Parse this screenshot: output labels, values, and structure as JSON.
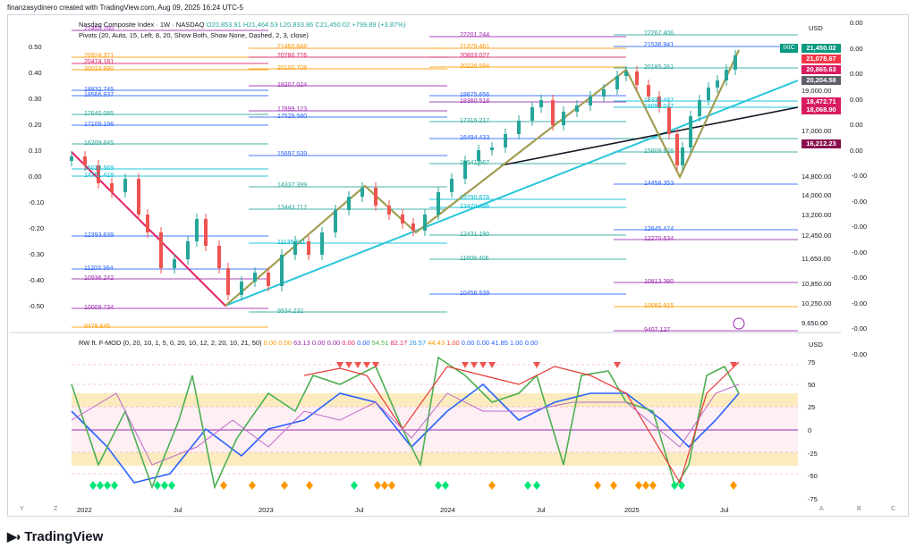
{
  "header": {
    "publisher": "finanzasydinero created with TradingView.com, Aug 09, 2025 16:24 UTC-5"
  },
  "legend": {
    "symbol": "Nasdaq Composite Index · 1W · NASDAQ",
    "open": "O20,853.91",
    "high": "H21,464.53",
    "low": "L20,833.86",
    "close": "C21,450.02",
    "change": "+799.89 (+3.87%)",
    "pivots": "Pivots (20, Auto, 15, Left, 8, 20, Show Both, Show None, Dashed, 2, 3, close)"
  },
  "indicator_legend": {
    "name": "RW ft. F-MOD (0, 20, 10, 1, 5, 0, 20, 10, 12, 2, 20, 10, 21, 50)",
    "values": [
      {
        "text": "0.00",
        "color": "#ff9800"
      },
      {
        "text": "0.00",
        "color": "#ff9800"
      },
      {
        "text": "63.13",
        "color": "#9c27b0"
      },
      {
        "text": "0.00",
        "color": "#9c27b0"
      },
      {
        "text": "0.00",
        "color": "#9c27b0"
      },
      {
        "text": "0.00",
        "color": "#e91e63"
      },
      {
        "text": "0.00",
        "color": "#2962ff"
      },
      {
        "text": "54.51",
        "color": "#4caf50"
      },
      {
        "text": "82.17",
        "color": "#e91e63"
      },
      {
        "text": "26.57",
        "color": "#2196f3"
      },
      {
        "text": "44.43",
        "color": "#ff9800"
      },
      {
        "text": "1.00",
        "color": "#f44336"
      },
      {
        "text": "0.00",
        "color": "#2962ff"
      },
      {
        "text": "0.00",
        "color": "#2962ff"
      },
      {
        "text": "41.85",
        "color": "#2962ff"
      },
      {
        "text": "1.00",
        "color": "#2962ff"
      },
      {
        "text": "0.00",
        "color": "#2962ff"
      }
    ]
  },
  "price_axis": {
    "currency": "USD",
    "labels": [
      "19,000.00",
      "17,000.00",
      "14,800.00",
      "14,000.00",
      "13,200.00",
      "12,450.00",
      "11,650.00",
      "10,850.00",
      "10,250.00",
      "9,650.00"
    ],
    "badges": [
      {
        "text": "21,450.02",
        "color": "#089981"
      },
      {
        "text": "21,078.67",
        "color": "#f23645"
      },
      {
        "text": "20,865.63",
        "color": "#d81b60"
      },
      {
        "text": "20,204.58",
        "color": "#5d606b"
      },
      {
        "text": "18,472.71",
        "color": "#d81b60"
      },
      {
        "text": "18,068.90",
        "color": "#d81b60"
      },
      {
        "text": "16,212.23",
        "color": "#880e4f"
      }
    ],
    "ticker": "IXIC"
  },
  "left_axis": [
    "0.50",
    "0.40",
    "0.30",
    "0.20",
    "0.10",
    "0.00",
    "-0.10",
    "-0.20",
    "-0.30",
    "-0.40",
    "-0.50"
  ],
  "right_axis": [
    "0.00",
    "0.00",
    "0.00",
    "0.00",
    "0.00",
    "0.00",
    "-0.00",
    "-0.00",
    "-0.00",
    "-0.00",
    "-0.00",
    "-0.00",
    "-0.00",
    "-0.00"
  ],
  "ind_axis": {
    "currency": "USD",
    "labels": [
      "75",
      "50",
      "25",
      "0",
      "-25",
      "-50",
      "-75"
    ]
  },
  "time_axis": [
    "2022",
    "Jul",
    "2023",
    "Jul",
    "2024",
    "Jul",
    "2025",
    "Jul"
  ],
  "corner": {
    "y": "Y",
    "z": "Z",
    "a": "A",
    "b": "B",
    "c": "C"
  },
  "pivot_labels": [
    {
      "text": "21455.260",
      "color": "#9c27b0"
    },
    {
      "text": "20924.371",
      "color": "#ff9800"
    },
    {
      "text": "20474.181",
      "color": "#d81b60"
    },
    {
      "text": "20023.990",
      "color": "#ff9800"
    },
    {
      "text": "18832.745",
      "color": "#2962ff"
    },
    {
      "text": "18566.937",
      "color": "#2962ff"
    },
    {
      "text": "17640.085",
      "color": "#26a69a"
    },
    {
      "text": "17109.196",
      "color": "#2962ff"
    },
    {
      "text": "16209.845",
      "color": "#26a69a"
    },
    {
      "text": "15018.569",
      "color": "#00bcd4"
    },
    {
      "text": "14751.418",
      "color": "#00bcd4"
    },
    {
      "text": "12393.639",
      "color": "#2962ff"
    },
    {
      "text": "11203.394",
      "color": "#2962ff"
    },
    {
      "text": "10936.242",
      "color": "#9c27b0"
    },
    {
      "text": "10009.734",
      "color": "#9c27b0"
    },
    {
      "text": "9478.845",
      "color": "#ff9800"
    },
    {
      "text": "21460.848",
      "color": "#ff9800"
    },
    {
      "text": "20780.776",
      "color": "#d81b60"
    },
    {
      "text": "20100.708",
      "color": "#ff9800"
    },
    {
      "text": "19207.024",
      "color": "#9c27b0"
    },
    {
      "text": "17899.123",
      "color": "#9c27b0"
    },
    {
      "text": "17529.580",
      "color": "#2962ff"
    },
    {
      "text": "15697.539",
      "color": "#2962ff"
    },
    {
      "text": "14337.399",
      "color": "#26a69a"
    },
    {
      "text": "13443.717",
      "color": "#26a69a"
    },
    {
      "text": "11135.811",
      "color": "#00bcd4"
    },
    {
      "text": "9934.232",
      "color": "#26a69a"
    },
    {
      "text": "22201.244",
      "color": "#9c27b0"
    },
    {
      "text": "21379.461",
      "color": "#ff9800"
    },
    {
      "text": "20803.027",
      "color": "#d81b60"
    },
    {
      "text": "20226.594",
      "color": "#ff9800"
    },
    {
      "text": "18675.656",
      "color": "#2962ff"
    },
    {
      "text": "18360.518",
      "color": "#9c27b0"
    },
    {
      "text": "17316.217",
      "color": "#26a69a"
    },
    {
      "text": "16494.433",
      "color": "#2962ff"
    },
    {
      "text": "15541.567",
      "color": "#26a69a"
    },
    {
      "text": "13790.678",
      "color": "#00bcd4"
    },
    {
      "text": "13470.486",
      "color": "#00bcd4"
    },
    {
      "text": "12431.190",
      "color": "#26a69a"
    },
    {
      "text": "11609.406",
      "color": "#26a69a"
    },
    {
      "text": "10456.539",
      "color": "#2962ff"
    },
    {
      "text": "22267.406",
      "color": "#26a69a"
    },
    {
      "text": "21536.941",
      "color": "#2962ff"
    },
    {
      "text": "20185.261",
      "color": "#26a69a"
    },
    {
      "text": "18333.487",
      "color": "#00bcd4"
    },
    {
      "text": "18091.047",
      "color": "#00bcd4"
    },
    {
      "text": "15809.928",
      "color": "#26a69a"
    },
    {
      "text": "14458.353",
      "color": "#2962ff"
    },
    {
      "text": "12645.474",
      "color": "#2962ff"
    },
    {
      "text": "12270.634",
      "color": "#9c27b0"
    },
    {
      "text": "10813.380",
      "color": "#9c27b0"
    },
    {
      "text": "10082.915",
      "color": "#ff9800"
    },
    {
      "text": "9407.127",
      "color": "#9c27b0"
    }
  ],
  "brand": {
    "name": "TradingView"
  }
}
